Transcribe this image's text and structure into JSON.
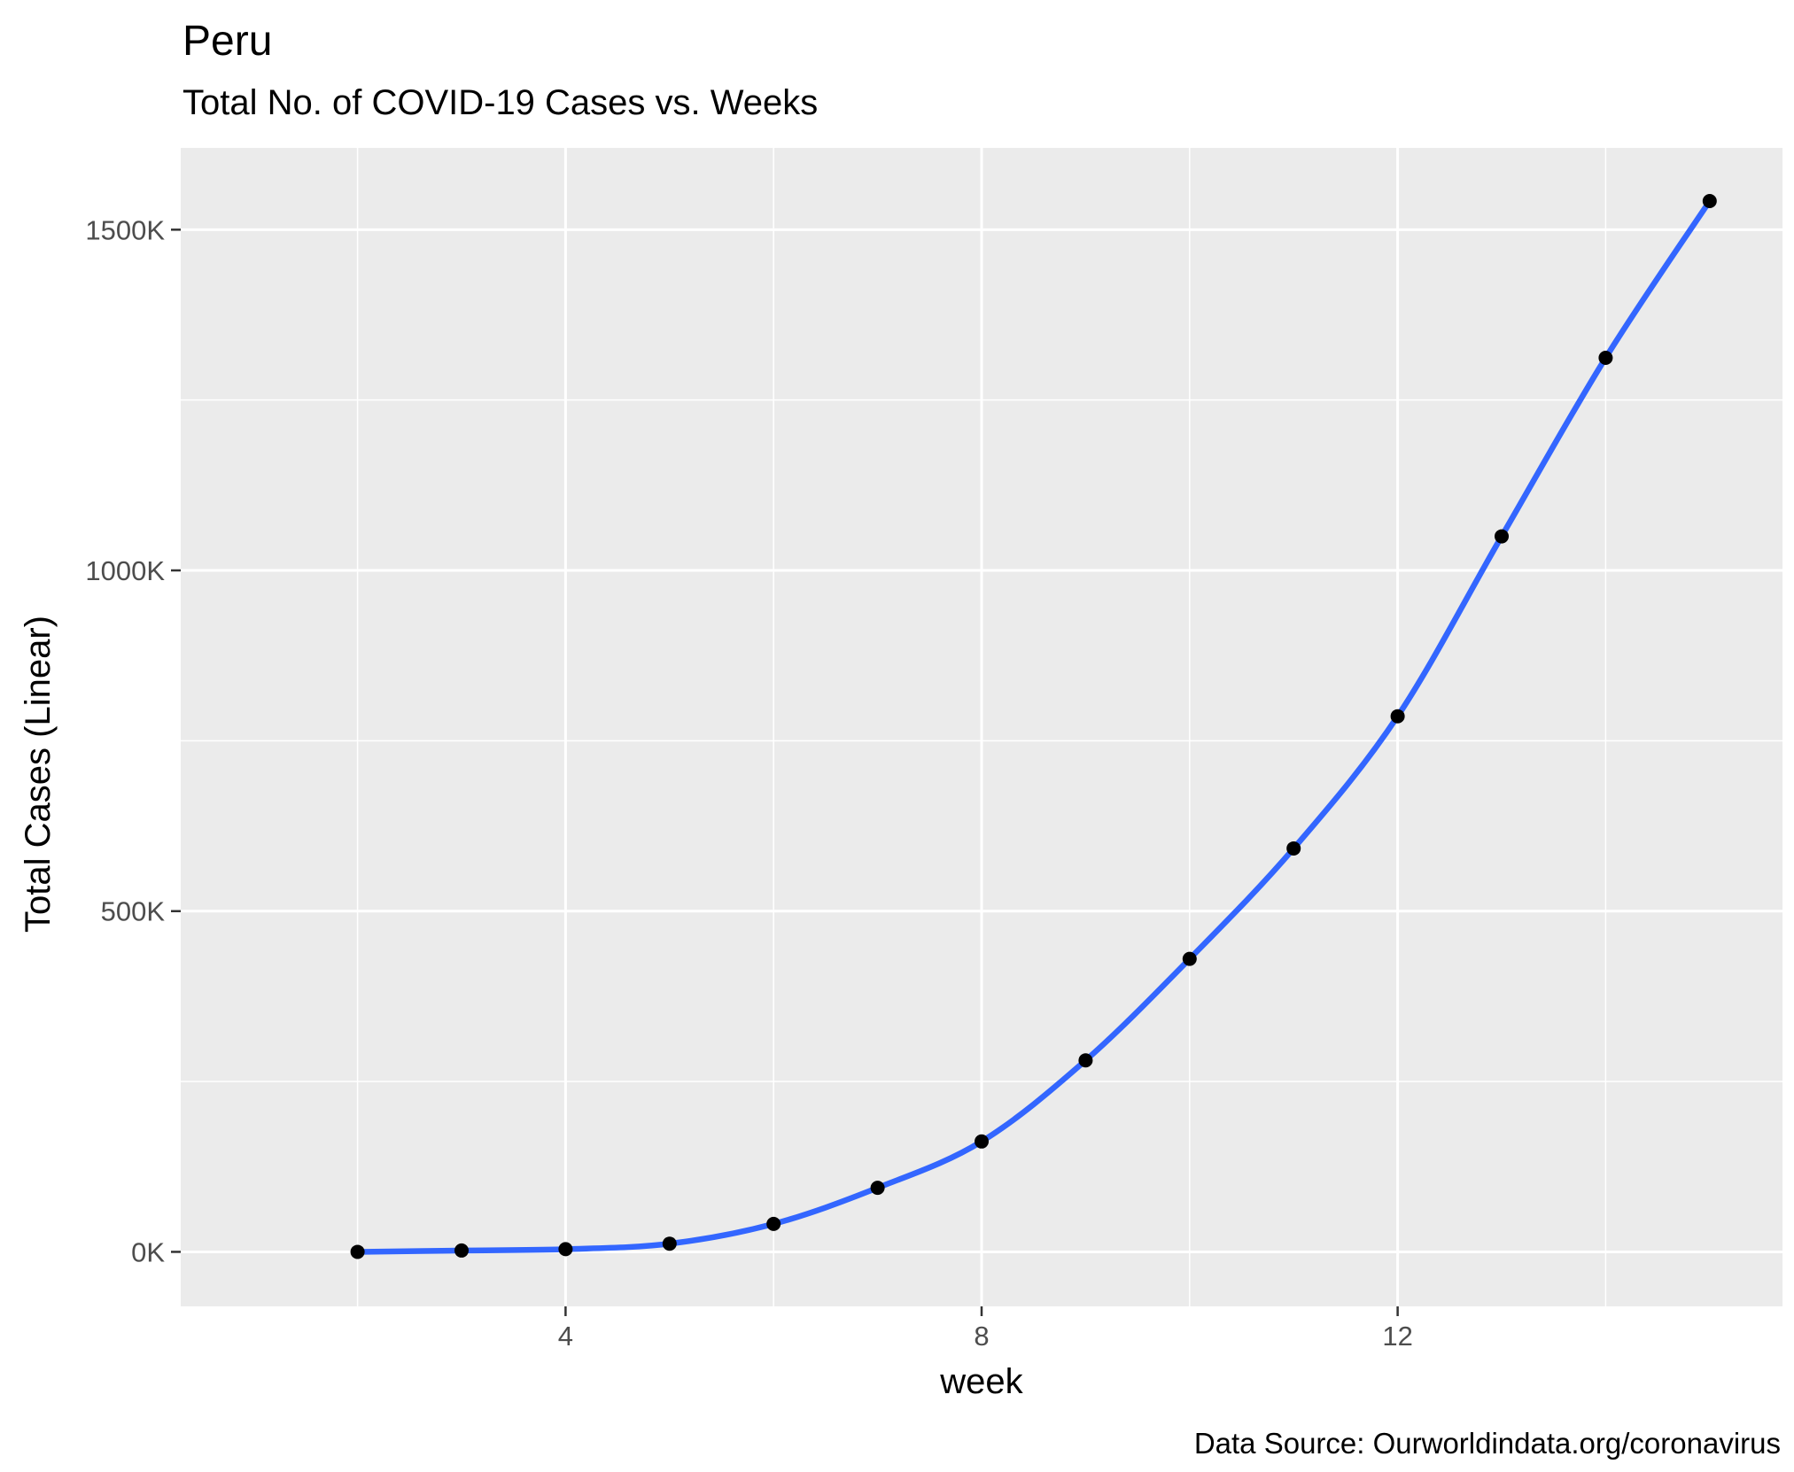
{
  "chart_data": {
    "type": "line",
    "title": "Peru",
    "subtitle": "Total No. of COVID-19 Cases vs. Weeks",
    "xlabel": "week",
    "ylabel": "Total Cases (Linear)",
    "caption": "Data Source: Ourworldindata.org/coronavirus",
    "xlim": [
      0.3,
      15.7
    ],
    "ylim": [
      -80000,
      1620000
    ],
    "x_ticks": [
      4,
      8,
      12
    ],
    "y_ticks": [
      0,
      500000,
      1000000,
      1500000
    ],
    "y_tick_labels": [
      "0K",
      "500K",
      "1000K",
      "1500K"
    ],
    "grid": true,
    "series": [
      {
        "x": [
          2,
          3,
          4,
          5,
          6,
          7,
          8,
          9,
          10,
          11,
          12,
          13,
          14,
          15
        ],
        "values": [
          0,
          2000,
          4000,
          12000,
          41000,
          94000,
          162000,
          281000,
          430000,
          592000,
          786000,
          1050000,
          1312000,
          1542000
        ]
      }
    ],
    "colors": {
      "panel": "#ebebeb",
      "line": "#3366ff",
      "points": "#000000"
    }
  }
}
